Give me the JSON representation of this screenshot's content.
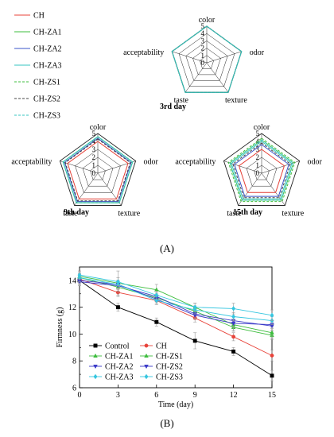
{
  "chart_data": [
    {
      "type": "radar",
      "axes": [
        "color",
        "odor",
        "texture",
        "taste",
        "acceptability"
      ],
      "rlim": [
        0,
        5
      ],
      "ticks": [
        "0",
        "1",
        "2",
        "3",
        "4",
        "5"
      ],
      "legend": {
        "placement": "top-left",
        "entries": [
          {
            "name": "CH",
            "color": "#e8433a",
            "dash": "solid"
          },
          {
            "name": "CH-ZA1",
            "color": "#3dbd3d",
            "dash": "solid"
          },
          {
            "name": "CH-ZA2",
            "color": "#3a55c8",
            "dash": "solid"
          },
          {
            "name": "CH-ZA3",
            "color": "#35c6c1",
            "dash": "solid"
          },
          {
            "name": "CH-ZS1",
            "color": "#3dbd3d",
            "dash": "dashed"
          },
          {
            "name": "CH-ZS2",
            "color": "#444444",
            "dash": "dashed"
          },
          {
            "name": "CH-ZS3",
            "color": "#35c6c1",
            "dash": "dashed"
          }
        ]
      },
      "panels": [
        {
          "title": "3rd day",
          "series": [
            {
              "name": "CH",
              "values": [
                5.0,
                5.0,
                5.0,
                5.0,
                5.0
              ]
            },
            {
              "name": "CH-ZA1",
              "values": [
                5.0,
                5.0,
                5.0,
                5.0,
                5.0
              ]
            },
            {
              "name": "CH-ZA2",
              "values": [
                5.0,
                5.0,
                5.0,
                5.0,
                5.0
              ]
            },
            {
              "name": "CH-ZA3",
              "values": [
                5.0,
                5.0,
                5.0,
                5.0,
                5.0
              ]
            },
            {
              "name": "CH-ZS1",
              "values": [
                5.0,
                5.0,
                5.0,
                5.0,
                5.0
              ]
            },
            {
              "name": "CH-ZS2",
              "values": [
                5.0,
                5.0,
                5.0,
                5.0,
                5.0
              ]
            },
            {
              "name": "CH-ZS3",
              "values": [
                5.0,
                5.0,
                5.0,
                5.0,
                5.0
              ]
            }
          ]
        },
        {
          "title": "9th day",
          "series": [
            {
              "name": "CH",
              "values": [
                4.0,
                4.0,
                4.0,
                4.0,
                4.0
              ]
            },
            {
              "name": "CH-ZA1",
              "values": [
                4.6,
                4.6,
                4.6,
                4.6,
                4.6
              ]
            },
            {
              "name": "CH-ZA2",
              "values": [
                4.4,
                4.4,
                4.4,
                4.4,
                4.4
              ]
            },
            {
              "name": "CH-ZA3",
              "values": [
                4.6,
                4.6,
                4.6,
                4.6,
                4.6
              ]
            },
            {
              "name": "CH-ZS1",
              "values": [
                4.6,
                4.6,
                4.6,
                4.6,
                4.6
              ]
            },
            {
              "name": "CH-ZS2",
              "values": [
                4.3,
                4.3,
                4.3,
                4.3,
                4.3
              ]
            },
            {
              "name": "CH-ZS3",
              "values": [
                4.6,
                4.6,
                4.6,
                4.6,
                4.6
              ]
            }
          ]
        },
        {
          "title": "15th day",
          "series": [
            {
              "name": "CH",
              "values": [
                3.0,
                3.0,
                3.0,
                3.0,
                3.0
              ]
            },
            {
              "name": "CH-ZA1",
              "values": [
                4.2,
                4.2,
                4.2,
                4.2,
                4.2
              ]
            },
            {
              "name": "CH-ZA2",
              "values": [
                3.6,
                3.6,
                3.6,
                3.6,
                3.6
              ]
            },
            {
              "name": "CH-ZA3",
              "values": [
                4.0,
                4.0,
                4.0,
                4.0,
                4.0
              ]
            },
            {
              "name": "CH-ZS1",
              "values": [
                4.4,
                4.4,
                4.4,
                4.4,
                4.4
              ]
            },
            {
              "name": "CH-ZS2",
              "values": [
                3.8,
                3.8,
                3.8,
                3.8,
                3.8
              ]
            },
            {
              "name": "CH-ZS3",
              "values": [
                4.2,
                4.2,
                4.2,
                4.2,
                4.2
              ]
            }
          ]
        }
      ],
      "panel_label": "(A)"
    },
    {
      "type": "line",
      "x": [
        0,
        3,
        6,
        9,
        12,
        15
      ],
      "xticks": [
        "0",
        "3",
        "6",
        "9",
        "12",
        "15"
      ],
      "yticks": [
        "6",
        "8",
        "10",
        "12",
        "14"
      ],
      "xlabel": "Time (day)",
      "ylabel": "Firmness (g)",
      "xlim": [
        0,
        15
      ],
      "ylim": [
        6,
        15
      ],
      "legend": {
        "placement": "bottom-left",
        "columns": 2
      },
      "series": [
        {
          "name": "Control",
          "color": "#000000",
          "marker": "square",
          "values": [
            14.0,
            12.0,
            10.9,
            9.5,
            8.7,
            6.9
          ],
          "err": [
            0.3,
            0.3,
            0.3,
            0.6,
            0.3,
            0.4
          ]
        },
        {
          "name": "CH",
          "color": "#e8433a",
          "marker": "circle",
          "values": [
            14.1,
            13.1,
            12.5,
            11.2,
            9.8,
            8.4
          ],
          "err": [
            0.3,
            0.3,
            0.3,
            0.3,
            0.3,
            0.4
          ]
        },
        {
          "name": "CH-ZA1",
          "color": "#3dbd3d",
          "marker": "triangle-up",
          "values": [
            14.2,
            13.5,
            12.7,
            11.7,
            10.5,
            9.9
          ],
          "err": [
            0.3,
            0.3,
            0.3,
            0.3,
            0.3,
            0.3
          ]
        },
        {
          "name": "CH-ZS1",
          "color": "#3dbd3d",
          "marker": "triangle-up",
          "values": [
            14.3,
            13.8,
            13.3,
            12.0,
            10.7,
            10.1
          ],
          "err": [
            0.3,
            0.9,
            0.4,
            0.3,
            0.4,
            0.4
          ]
        },
        {
          "name": "CH-ZA2",
          "color": "#3a3ac8",
          "marker": "triangle-down",
          "values": [
            13.9,
            13.6,
            12.8,
            11.5,
            11.0,
            10.6
          ],
          "err": [
            0.3,
            0.3,
            0.3,
            0.3,
            0.3,
            0.3
          ]
        },
        {
          "name": "CH-ZS2",
          "color": "#3a3ac8",
          "marker": "triangle-down",
          "values": [
            14.0,
            13.7,
            12.6,
            11.4,
            10.8,
            10.7
          ],
          "err": [
            0.3,
            0.3,
            0.3,
            0.3,
            0.3,
            0.3
          ]
        },
        {
          "name": "CH-ZA3",
          "color": "#35c6e0",
          "marker": "diamond",
          "values": [
            14.2,
            13.7,
            12.5,
            11.8,
            11.3,
            11.0
          ],
          "err": [
            0.3,
            0.3,
            0.3,
            0.3,
            0.3,
            0.3
          ]
        },
        {
          "name": "CH-ZS3",
          "color": "#35c6e0",
          "marker": "diamond",
          "values": [
            14.4,
            13.9,
            12.9,
            12.0,
            11.9,
            11.4
          ],
          "err": [
            0.3,
            0.3,
            0.3,
            0.3,
            0.4,
            0.4
          ]
        }
      ],
      "panel_label": "(B)"
    }
  ]
}
